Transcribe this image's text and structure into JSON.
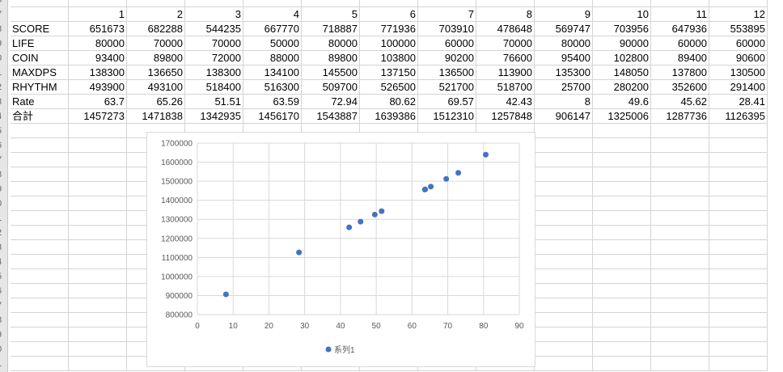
{
  "row_numbers": [
    "6",
    "7",
    "8",
    "9",
    "0",
    "1",
    "2",
    "3",
    "4",
    "5",
    "6",
    "7",
    "8",
    "9",
    "0",
    "1",
    "2",
    "3",
    "4",
    "5",
    "6",
    "7",
    "8",
    "9",
    "0",
    "1"
  ],
  "table": {
    "headers": [
      "",
      "1",
      "2",
      "3",
      "4",
      "5",
      "6",
      "7",
      "8",
      "9",
      "10",
      "11",
      "12"
    ],
    "rows": [
      [
        "SCORE",
        "651673",
        "682288",
        "544235",
        "667770",
        "718887",
        "771936",
        "703910",
        "478648",
        "569747",
        "703956",
        "647936",
        "553895"
      ],
      [
        "LIFE",
        "80000",
        "70000",
        "70000",
        "50000",
        "80000",
        "100000",
        "60000",
        "70000",
        "80000",
        "90000",
        "60000",
        "60000"
      ],
      [
        "COIN",
        "93400",
        "89800",
        "72000",
        "88000",
        "89800",
        "103800",
        "90200",
        "76600",
        "95400",
        "102800",
        "89400",
        "90600"
      ],
      [
        "MAXDPS",
        "138300",
        "136650",
        "138300",
        "134100",
        "145500",
        "137150",
        "136500",
        "113900",
        "135300",
        "148050",
        "137800",
        "130500"
      ],
      [
        "RHYTHM",
        "493900",
        "493100",
        "518400",
        "516300",
        "509700",
        "526500",
        "521700",
        "518700",
        "25700",
        "280200",
        "352600",
        "291400"
      ],
      [
        "Rate",
        "63.7",
        "65.26",
        "51.51",
        "63.59",
        "72.94",
        "80.62",
        "69.57",
        "42.43",
        "8",
        "49.6",
        "45.62",
        "28.41"
      ],
      [
        "合計",
        "1457273",
        "1471838",
        "1342935",
        "1456170",
        "1543887",
        "1639386",
        "1512310",
        "1257848",
        "906147",
        "1325006",
        "1287736",
        "1126395"
      ]
    ]
  },
  "chart_data": {
    "type": "scatter",
    "series": [
      {
        "name": "系列1",
        "color": "#4472c4",
        "x": [
          63.7,
          65.26,
          51.51,
          63.59,
          72.94,
          80.62,
          69.57,
          42.43,
          8,
          49.6,
          45.62,
          28.41
        ],
        "y": [
          1457273,
          1471838,
          1342935,
          1456170,
          1543887,
          1639386,
          1512310,
          1257848,
          906147,
          1325006,
          1287736,
          1126395
        ]
      }
    ],
    "xlim": [
      0,
      90
    ],
    "ylim": [
      800000,
      1700000
    ],
    "xticks": [
      "0",
      "10",
      "20",
      "30",
      "40",
      "50",
      "60",
      "70",
      "80",
      "90"
    ],
    "yticks": [
      "800000",
      "900000",
      "1000000",
      "1100000",
      "1200000",
      "1300000",
      "1400000",
      "1500000",
      "1600000",
      "1700000"
    ],
    "grid": true,
    "legend": "bottom"
  }
}
